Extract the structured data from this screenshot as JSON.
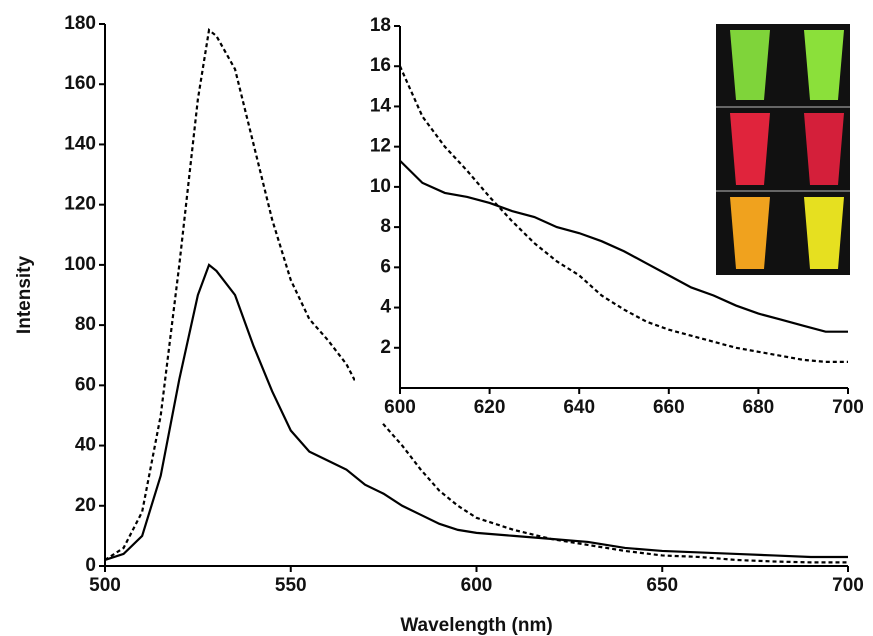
{
  "chart_data": [
    {
      "type": "line",
      "x_label": "Wavelength (nm)",
      "y_label": "Intensity",
      "x": [
        500,
        505,
        510,
        515,
        520,
        525,
        528,
        530,
        535,
        540,
        545,
        550,
        555,
        560,
        565,
        570,
        575,
        580,
        585,
        590,
        595,
        600,
        610,
        620,
        630,
        640,
        650,
        660,
        670,
        680,
        690,
        700
      ],
      "series": [
        {
          "color": "#000000",
          "dashed": false,
          "values": [
            2,
            4,
            10,
            30,
            62,
            90,
            100,
            98,
            90,
            73,
            58,
            45,
            38,
            35,
            32,
            27,
            24,
            20,
            17,
            14,
            12,
            11,
            10,
            9,
            8,
            6,
            5,
            4.5,
            4,
            3.5,
            3,
            3
          ]
        },
        {
          "color": "#000000",
          "dashed": true,
          "values": [
            2,
            6,
            18,
            50,
            100,
            155,
            178,
            176,
            165,
            140,
            115,
            95,
            82,
            75,
            67,
            55,
            47,
            40,
            32,
            25,
            20,
            16,
            12,
            9,
            7,
            5,
            3.5,
            3,
            2,
            1.5,
            1.2,
            1.2
          ]
        }
      ],
      "xlim": [
        500,
        700
      ],
      "xticks": [
        500,
        550,
        600,
        650,
        700
      ],
      "ylim": [
        0,
        180
      ],
      "yticks": [
        0,
        20,
        40,
        60,
        80,
        100,
        120,
        140,
        160,
        180
      ]
    },
    {
      "type": "line",
      "x": [
        600,
        605,
        610,
        615,
        620,
        625,
        630,
        635,
        640,
        645,
        650,
        655,
        660,
        665,
        670,
        675,
        680,
        685,
        690,
        695,
        700
      ],
      "series": [
        {
          "color": "#000000",
          "dashed": false,
          "values": [
            11.3,
            10.2,
            9.7,
            9.5,
            9.2,
            8.8,
            8.5,
            8,
            7.7,
            7.3,
            6.8,
            6.2,
            5.6,
            5,
            4.6,
            4.1,
            3.7,
            3.4,
            3.1,
            2.8,
            2.8
          ]
        },
        {
          "color": "#000000",
          "dashed": true,
          "values": [
            16,
            13.5,
            12,
            10.8,
            9.5,
            8.3,
            7.2,
            6.3,
            5.6,
            4.6,
            3.9,
            3.3,
            2.9,
            2.6,
            2.3,
            2,
            1.8,
            1.6,
            1.4,
            1.3,
            1.3
          ]
        }
      ],
      "xlim": [
        600,
        700
      ],
      "xticks": [
        600,
        620,
        640,
        660,
        680,
        700
      ],
      "ylim": [
        0,
        18
      ],
      "yticks": [
        2,
        4,
        6,
        8,
        10,
        12,
        14,
        16,
        18
      ]
    }
  ]
}
